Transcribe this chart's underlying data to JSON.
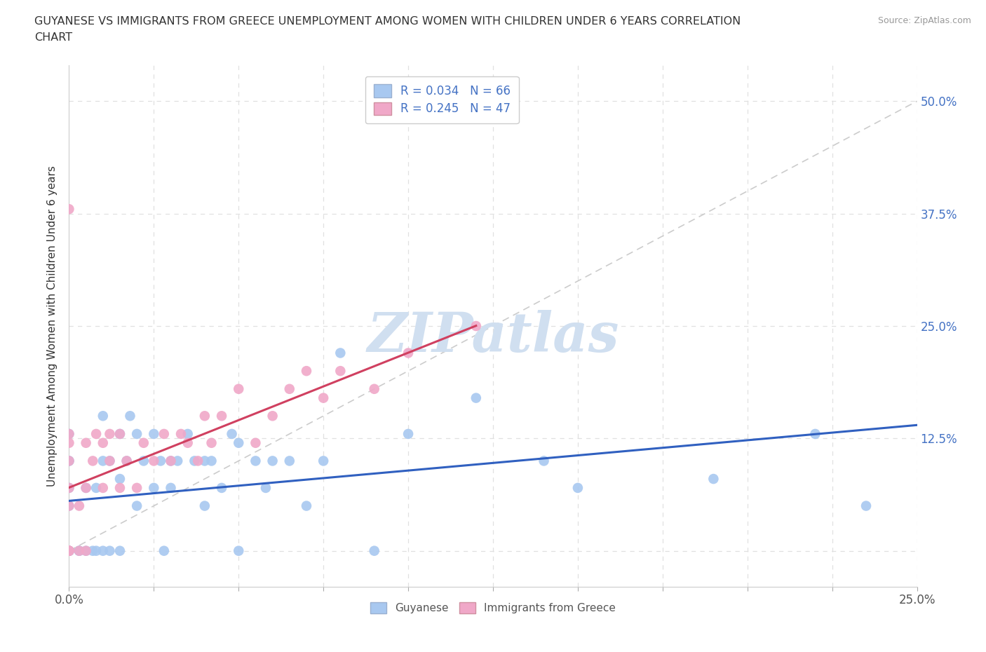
{
  "title_line1": "GUYANESE VS IMMIGRANTS FROM GREECE UNEMPLOYMENT AMONG WOMEN WITH CHILDREN UNDER 6 YEARS CORRELATION",
  "title_line2": "CHART",
  "source": "Source: ZipAtlas.com",
  "ylabel": "Unemployment Among Women with Children Under 6 years",
  "xlim": [
    0.0,
    0.25
  ],
  "ylim": [
    -0.04,
    0.54
  ],
  "xticks": [
    0.0,
    0.025,
    0.05,
    0.075,
    0.1,
    0.125,
    0.15,
    0.175,
    0.2,
    0.225,
    0.25
  ],
  "xticklabels": [
    "0.0%",
    "",
    "",
    "",
    "",
    "",
    "",
    "",
    "",
    "",
    "25.0%"
  ],
  "yticks": [
    0.0,
    0.125,
    0.25,
    0.375,
    0.5
  ],
  "yticklabels_right": [
    "",
    "12.5%",
    "25.0%",
    "37.5%",
    "50.0%"
  ],
  "blue_color": "#a8c8f0",
  "pink_color": "#f0a8c8",
  "trend_blue_color": "#3060c0",
  "trend_pink_color": "#d04060",
  "ref_line_color": "#cccccc",
  "watermark": "ZIPatlas",
  "watermark_color": "#d0dff0",
  "background_color": "#ffffff",
  "grid_color": "#e0e0e0",
  "guyanese_x": [
    0.0,
    0.0,
    0.0,
    0.0,
    0.0,
    0.0,
    0.0,
    0.0,
    0.0,
    0.0,
    0.0,
    0.0,
    0.0,
    0.0,
    0.0,
    0.003,
    0.003,
    0.005,
    0.005,
    0.007,
    0.008,
    0.008,
    0.01,
    0.01,
    0.01,
    0.012,
    0.012,
    0.015,
    0.015,
    0.015,
    0.017,
    0.018,
    0.02,
    0.02,
    0.022,
    0.025,
    0.025,
    0.027,
    0.028,
    0.03,
    0.03,
    0.032,
    0.035,
    0.037,
    0.04,
    0.04,
    0.042,
    0.045,
    0.048,
    0.05,
    0.05,
    0.055,
    0.058,
    0.06,
    0.065,
    0.07,
    0.075,
    0.08,
    0.09,
    0.1,
    0.12,
    0.14,
    0.15,
    0.19,
    0.22,
    0.235
  ],
  "guyanese_y": [
    0.0,
    0.0,
    0.0,
    0.0,
    0.0,
    0.0,
    0.0,
    0.0,
    0.0,
    0.0,
    0.05,
    0.07,
    0.1,
    0.1,
    0.13,
    0.0,
    0.0,
    0.0,
    0.07,
    0.0,
    0.0,
    0.07,
    0.0,
    0.1,
    0.15,
    0.0,
    0.1,
    0.0,
    0.08,
    0.13,
    0.1,
    0.15,
    0.05,
    0.13,
    0.1,
    0.07,
    0.13,
    0.1,
    0.0,
    0.07,
    0.1,
    0.1,
    0.13,
    0.1,
    0.05,
    0.1,
    0.1,
    0.07,
    0.13,
    0.0,
    0.12,
    0.1,
    0.07,
    0.1,
    0.1,
    0.05,
    0.1,
    0.22,
    0.0,
    0.13,
    0.17,
    0.1,
    0.07,
    0.08,
    0.13,
    0.05
  ],
  "greece_x": [
    0.0,
    0.0,
    0.0,
    0.0,
    0.0,
    0.0,
    0.0,
    0.0,
    0.0,
    0.0,
    0.0,
    0.0,
    0.003,
    0.003,
    0.005,
    0.005,
    0.005,
    0.007,
    0.008,
    0.01,
    0.01,
    0.012,
    0.012,
    0.015,
    0.015,
    0.017,
    0.02,
    0.022,
    0.025,
    0.028,
    0.03,
    0.033,
    0.035,
    0.038,
    0.04,
    0.042,
    0.045,
    0.05,
    0.055,
    0.06,
    0.065,
    0.07,
    0.075,
    0.08,
    0.09,
    0.1,
    0.12
  ],
  "greece_y": [
    0.0,
    0.0,
    0.0,
    0.0,
    0.0,
    0.0,
    0.05,
    0.07,
    0.1,
    0.12,
    0.13,
    0.38,
    0.0,
    0.05,
    0.0,
    0.07,
    0.12,
    0.1,
    0.13,
    0.07,
    0.12,
    0.1,
    0.13,
    0.07,
    0.13,
    0.1,
    0.07,
    0.12,
    0.1,
    0.13,
    0.1,
    0.13,
    0.12,
    0.1,
    0.15,
    0.12,
    0.15,
    0.18,
    0.12,
    0.15,
    0.18,
    0.2,
    0.17,
    0.2,
    0.18,
    0.22,
    0.25
  ]
}
